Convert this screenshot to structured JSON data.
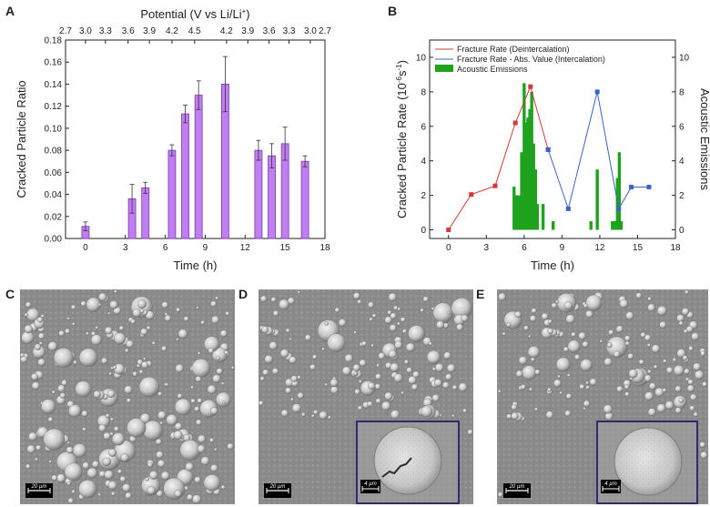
{
  "panels": {
    "A": "A",
    "B": "B",
    "C": "C",
    "D": "D",
    "E": "E"
  },
  "chart_data": [
    {
      "panel": "A",
      "type": "bar",
      "xlabel": "Time (h)",
      "ylabel": "Cracked Particle Ratio",
      "top_axis_label_prefix": "Potential (V vs Li/Li",
      "top_axis_label_sup": "+",
      "top_axis_label_suffix": ")",
      "xlim": [
        -1.5,
        18
      ],
      "ylim": [
        0,
        0.18
      ],
      "xticks": [
        "0",
        "3",
        "6",
        "9",
        "12",
        "15",
        "18"
      ],
      "xtick_values": [
        0,
        3,
        6,
        9,
        12,
        15,
        18
      ],
      "yticks": [
        "0.00",
        "0.02",
        "0.04",
        "0.06",
        "0.08",
        "0.10",
        "0.12",
        "0.14",
        "0.16",
        "0.18"
      ],
      "ytick_values": [
        0,
        0.02,
        0.04,
        0.06,
        0.08,
        0.1,
        0.12,
        0.14,
        0.16,
        0.18
      ],
      "top_ticks": [
        "2.7",
        "3.0",
        "3.3",
        "3.6",
        "3.9",
        "4.2",
        "4.5",
        "4.2",
        "3.9",
        "3.6",
        "3.3",
        "3.0",
        "2.7"
      ],
      "top_tick_positions": [
        -1.5,
        0,
        1.5,
        3.2,
        4.8,
        6.5,
        8.2,
        10.6,
        12.2,
        13.8,
        15.3,
        16.9,
        18
      ],
      "bar_color": "#c07ef0",
      "bar_edge": "#7a38b8",
      "series": [
        {
          "x": [
            0,
            3.5,
            4.5,
            6.5,
            7.5,
            8.5,
            10.5,
            13,
            14,
            15,
            16.5
          ],
          "values": [
            0.011,
            0.036,
            0.046,
            0.08,
            0.113,
            0.13,
            0.14,
            0.08,
            0.075,
            0.086,
            0.07
          ],
          "errors": [
            0.004,
            0.013,
            0.005,
            0.005,
            0.008,
            0.013,
            0.025,
            0.009,
            0.011,
            0.015,
            0.005
          ]
        }
      ]
    },
    {
      "panel": "B",
      "type": "line",
      "xlabel": "Time (h)",
      "ylabel_prefix": "Cracked Particle Rate (10",
      "ylabel_sup": "-6",
      "ylabel_mid": "s",
      "ylabel_sup2": "-1",
      "ylabel_suffix": ")",
      "y2label": "Acoustic Emissions",
      "xlim": [
        -1.5,
        18
      ],
      "ylim": [
        -0.5,
        11
      ],
      "y2lim": [
        -0.5,
        11
      ],
      "xticks": [
        "0",
        "3",
        "6",
        "9",
        "12",
        "15",
        "18"
      ],
      "xtick_values": [
        0,
        3,
        6,
        9,
        12,
        15,
        18
      ],
      "yticks": [
        "0",
        "2",
        "4",
        "6",
        "8",
        "10"
      ],
      "ytick_values": [
        0,
        2,
        4,
        6,
        8,
        10
      ],
      "y2ticks": [
        "0",
        "2",
        "4",
        "6",
        "8",
        "10"
      ],
      "legend_position": "top-left",
      "series": [
        {
          "name": "Fracture Rate (Deintercalation)",
          "color": "#d23a3a",
          "x": [
            0,
            1.8,
            3.7,
            5.3,
            6.5,
            7.9
          ],
          "values": [
            0.0,
            2.05,
            2.55,
            6.2,
            8.3,
            4.65
          ]
        },
        {
          "name": "Fracture Rate - Abs. Value (Intercalation)",
          "color": "#3b63c4",
          "x": [
            7.9,
            9.5,
            11.8,
            13.5,
            14.5,
            15.9
          ],
          "values": [
            4.65,
            1.22,
            8.0,
            1.22,
            2.48,
            2.48
          ]
        },
        {
          "name": "Acoustic Emissions",
          "color": "#1fa31f",
          "type": "bar",
          "x": [
            5.2,
            5.4,
            5.6,
            5.8,
            6.0,
            6.15,
            6.3,
            6.45,
            6.6,
            6.75,
            6.9,
            7.05,
            7.5,
            8.3,
            11.3,
            11.8,
            13.0,
            13.2,
            13.4,
            13.55,
            13.7
          ],
          "values": [
            2.5,
            2.0,
            2.0,
            4.5,
            8.5,
            6.2,
            6.5,
            7.0,
            8.0,
            5.0,
            3.5,
            1.5,
            1.5,
            0.5,
            0.5,
            3.5,
            0.5,
            0.5,
            3.0,
            4.5,
            0.5
          ]
        }
      ]
    }
  ],
  "micrographs": {
    "C": {
      "scale_label": "20 µm"
    },
    "D": {
      "scale_label": "20 µm",
      "inset_scale_label": "4 µm"
    },
    "E": {
      "scale_label": "20 µm",
      "inset_scale_label": "4 µm"
    }
  },
  "colors": {
    "inset_border": "#2e2a6b",
    "sem_background": "#8b8b8b"
  }
}
